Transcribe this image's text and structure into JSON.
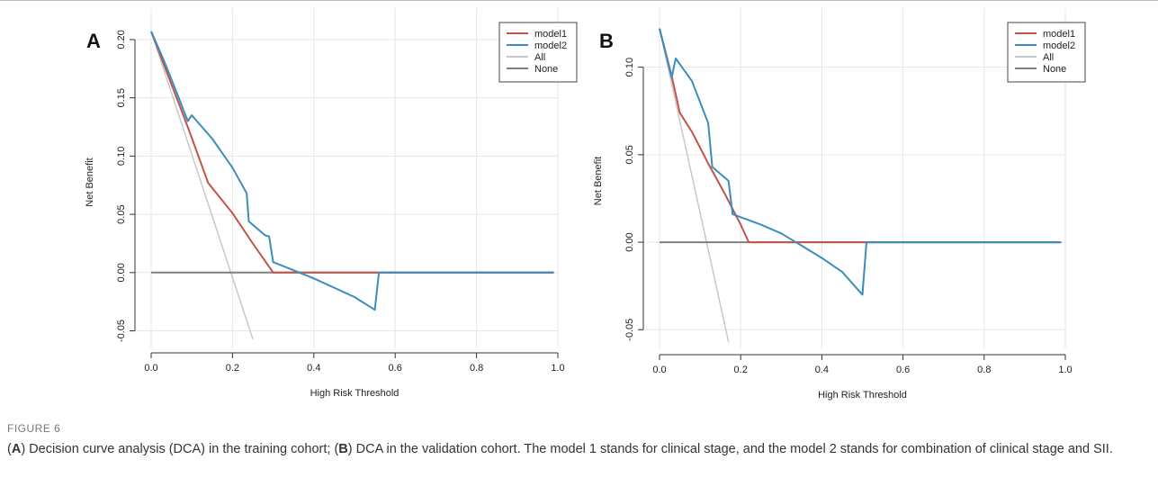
{
  "figure": {
    "label": "FIGURE 6",
    "caption_parts": [
      {
        "t": "(",
        "b": false
      },
      {
        "t": "A",
        "b": true
      },
      {
        "t": ") Decision curve analysis (DCA) in the training cohort; (",
        "b": false
      },
      {
        "t": "B",
        "b": true
      },
      {
        "t": ") DCA in the validation cohort. The model 1 stands for clinical stage, and the model 2 stands for combination of clinical stage and SII.",
        "b": false
      }
    ]
  },
  "colors": {
    "model1": "#c0544a",
    "model2": "#3a8dbd",
    "all": "#c8c8c8",
    "none": "#808080",
    "grid": "#e6e6e6",
    "axis": "#333333"
  },
  "chart_data": [
    {
      "type": "line",
      "panel_label": "A",
      "xlabel": "High Risk Threshold",
      "ylabel": "Net Benefit",
      "xlim": [
        0,
        1
      ],
      "ylim": [
        -0.055,
        0.21
      ],
      "xticks": [
        0.0,
        0.2,
        0.4,
        0.6,
        0.8,
        1.0
      ],
      "xtick_labels": [
        "0.0",
        "0.2",
        "0.4",
        "0.6",
        "0.8",
        "1.0"
      ],
      "yticks": [
        -0.05,
        0.0,
        0.05,
        0.1,
        0.15,
        0.2
      ],
      "ytick_labels": [
        "-0.05",
        "0.00",
        "0.05",
        "0.10",
        "0.15",
        "0.20"
      ],
      "grid": true,
      "legend_position": "top-right",
      "series": [
        {
          "name": "model1",
          "color_key": "model1",
          "points": [
            [
              0.0,
              0.207
            ],
            [
              0.09,
              0.125
            ],
            [
              0.14,
              0.077
            ],
            [
              0.2,
              0.051
            ],
            [
              0.25,
              0.025
            ],
            [
              0.3,
              0.0
            ],
            [
              0.99,
              0.0
            ]
          ]
        },
        {
          "name": "model2",
          "color_key": "model2",
          "points": [
            [
              0.0,
              0.207
            ],
            [
              0.03,
              0.183
            ],
            [
              0.06,
              0.157
            ],
            [
              0.09,
              0.13
            ],
            [
              0.1,
              0.135
            ],
            [
              0.15,
              0.115
            ],
            [
              0.2,
              0.09
            ],
            [
              0.235,
              0.068
            ],
            [
              0.24,
              0.044
            ],
            [
              0.28,
              0.032
            ],
            [
              0.29,
              0.031
            ],
            [
              0.3,
              0.009
            ],
            [
              0.35,
              0.002
            ],
            [
              0.4,
              -0.005
            ],
            [
              0.45,
              -0.013
            ],
            [
              0.5,
              -0.021
            ],
            [
              0.55,
              -0.032
            ],
            [
              0.56,
              0.0
            ],
            [
              0.99,
              0.0
            ]
          ]
        },
        {
          "name": "All",
          "color_key": "all",
          "points": [
            [
              0.0,
              0.207
            ],
            [
              0.25,
              -0.057
            ]
          ]
        },
        {
          "name": "None",
          "color_key": "none",
          "points": [
            [
              0.0,
              0.0
            ],
            [
              0.99,
              0.0
            ]
          ]
        }
      ]
    },
    {
      "type": "line",
      "panel_label": "B",
      "xlabel": "High Risk Threshold",
      "ylabel": "Net Benefit",
      "xlim": [
        0,
        1
      ],
      "ylim": [
        -0.055,
        0.125
      ],
      "xticks": [
        0.0,
        0.2,
        0.4,
        0.6,
        0.8,
        1.0
      ],
      "xtick_labels": [
        "0.0",
        "0.2",
        "0.4",
        "0.6",
        "0.8",
        "1.0"
      ],
      "yticks": [
        -0.05,
        0.0,
        0.05,
        0.1
      ],
      "ytick_labels": [
        "-0.05",
        "0.00",
        "0.05",
        "0.10"
      ],
      "grid": true,
      "legend_position": "top-right",
      "series": [
        {
          "name": "model1",
          "color_key": "model1",
          "points": [
            [
              0.0,
              0.122
            ],
            [
              0.03,
              0.095
            ],
            [
              0.05,
              0.074
            ],
            [
              0.08,
              0.063
            ],
            [
              0.12,
              0.045
            ],
            [
              0.16,
              0.028
            ],
            [
              0.2,
              0.01
            ],
            [
              0.22,
              0.0
            ],
            [
              0.99,
              0.0
            ]
          ]
        },
        {
          "name": "model2",
          "color_key": "model2",
          "points": [
            [
              0.0,
              0.122
            ],
            [
              0.03,
              0.094
            ],
            [
              0.04,
              0.105
            ],
            [
              0.08,
              0.092
            ],
            [
              0.12,
              0.068
            ],
            [
              0.13,
              0.043
            ],
            [
              0.17,
              0.035
            ],
            [
              0.18,
              0.016
            ],
            [
              0.25,
              0.01
            ],
            [
              0.3,
              0.005
            ],
            [
              0.35,
              -0.002
            ],
            [
              0.4,
              -0.009
            ],
            [
              0.45,
              -0.017
            ],
            [
              0.5,
              -0.03
            ],
            [
              0.51,
              0.0
            ],
            [
              0.99,
              0.0
            ]
          ]
        },
        {
          "name": "All",
          "color_key": "all",
          "points": [
            [
              0.0,
              0.122
            ],
            [
              0.17,
              -0.057
            ]
          ]
        },
        {
          "name": "None",
          "color_key": "none",
          "points": [
            [
              0.0,
              0.0
            ],
            [
              0.99,
              0.0
            ]
          ]
        }
      ]
    }
  ]
}
